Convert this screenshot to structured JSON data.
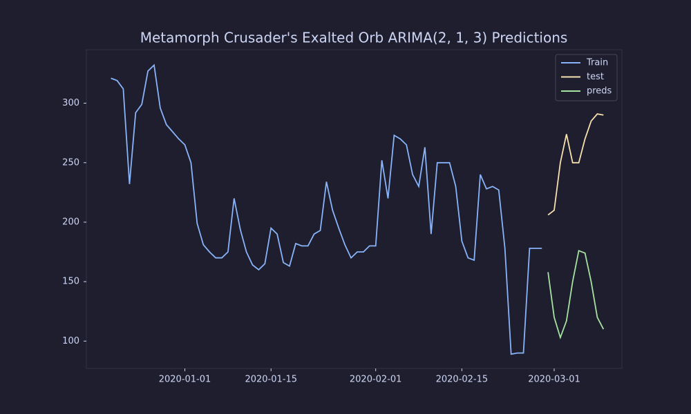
{
  "chart_data": {
    "type": "line",
    "title": "Metamorph Crusader's Exalted Orb ARIMA(2, 1, 3) Predictions",
    "xlim": [
      "2019-12-16",
      "2020-03-12"
    ],
    "xticks": [
      "2020-01-01",
      "2020-01-15",
      "2020-02-01",
      "2020-02-15",
      "2020-03-01"
    ],
    "ylim": [
      77,
      345
    ],
    "yticks": [
      100,
      150,
      200,
      250,
      300
    ],
    "legend": "upper right",
    "series": [
      {
        "name": "Train",
        "color": "#89b4fa",
        "x": [
          "2019-12-20",
          "2019-12-21",
          "2019-12-22",
          "2019-12-23",
          "2019-12-24",
          "2019-12-25",
          "2019-12-26",
          "2019-12-27",
          "2019-12-28",
          "2019-12-29",
          "2019-12-30",
          "2019-12-31",
          "2020-01-01",
          "2020-01-02",
          "2020-01-03",
          "2020-01-04",
          "2020-01-05",
          "2020-01-06",
          "2020-01-07",
          "2020-01-08",
          "2020-01-09",
          "2020-01-10",
          "2020-01-11",
          "2020-01-12",
          "2020-01-13",
          "2020-01-14",
          "2020-01-15",
          "2020-01-16",
          "2020-01-17",
          "2020-01-18",
          "2020-01-19",
          "2020-01-20",
          "2020-01-21",
          "2020-01-22",
          "2020-01-23",
          "2020-01-24",
          "2020-01-25",
          "2020-01-26",
          "2020-01-27",
          "2020-01-28",
          "2020-01-29",
          "2020-01-30",
          "2020-01-31",
          "2020-02-01",
          "2020-02-02",
          "2020-02-03",
          "2020-02-04",
          "2020-02-05",
          "2020-02-06",
          "2020-02-07",
          "2020-02-08",
          "2020-02-09",
          "2020-02-10",
          "2020-02-11",
          "2020-02-12",
          "2020-02-13",
          "2020-02-14",
          "2020-02-15",
          "2020-02-16",
          "2020-02-17",
          "2020-02-18",
          "2020-02-19",
          "2020-02-20",
          "2020-02-21",
          "2020-02-22",
          "2020-02-23",
          "2020-02-24",
          "2020-02-25",
          "2020-02-26",
          "2020-02-27",
          "2020-02-28"
        ],
        "values": [
          321,
          319,
          312,
          232,
          292,
          299,
          327,
          332,
          296,
          282,
          276,
          270,
          265,
          250,
          199,
          181,
          175,
          170,
          170,
          175,
          220,
          194,
          175,
          164,
          160,
          165,
          195,
          190,
          166,
          163,
          182,
          180,
          180,
          190,
          193,
          234,
          210,
          195,
          181,
          170,
          175,
          175,
          180,
          180,
          252,
          220,
          273,
          270,
          265,
          240,
          230,
          263,
          190,
          250,
          250,
          250,
          230,
          184,
          170,
          168,
          240,
          228,
          230,
          227,
          178,
          89,
          90,
          90,
          178,
          178,
          178
        ]
      },
      {
        "name": "test",
        "color": "#f9e2af",
        "x": [
          "2020-02-29",
          "2020-03-01",
          "2020-03-02",
          "2020-03-03",
          "2020-03-04",
          "2020-03-05",
          "2020-03-06",
          "2020-03-07",
          "2020-03-08",
          "2020-03-09"
        ],
        "values": [
          206,
          210,
          250,
          274,
          250,
          250,
          270,
          285,
          291,
          290
        ]
      },
      {
        "name": "preds",
        "color": "#a6e3a1",
        "x": [
          "2020-02-29",
          "2020-03-01",
          "2020-03-02",
          "2020-03-03",
          "2020-03-04",
          "2020-03-05",
          "2020-03-06",
          "2020-03-07",
          "2020-03-08",
          "2020-03-09"
        ],
        "values": [
          158,
          120,
          103,
          117,
          150,
          176,
          174,
          150,
          120,
          110
        ]
      }
    ]
  }
}
